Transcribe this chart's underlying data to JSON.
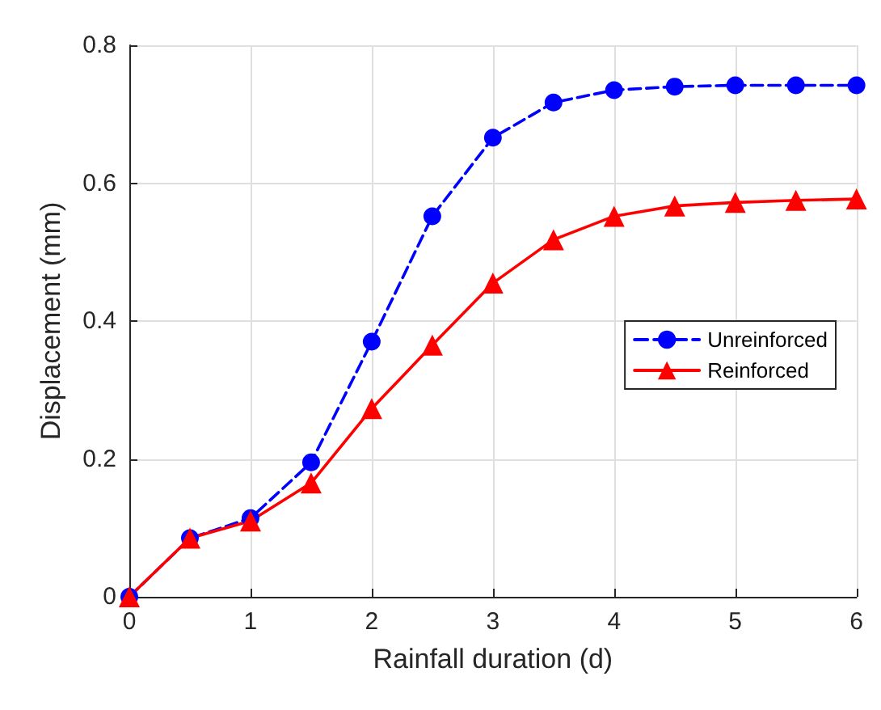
{
  "chart_data": {
    "type": "line",
    "xlabel": "Rainfall duration (d)",
    "ylabel": "Displacement (mm)",
    "x": [
      0,
      0.5,
      1,
      1.5,
      2,
      2.5,
      3,
      3.5,
      4,
      4.5,
      5,
      5.5,
      6
    ],
    "series": [
      {
        "name": "Unreinforced",
        "color": "#0000ff",
        "marker": "circle",
        "line_style": "dashed",
        "values": [
          0,
          0.085,
          0.114,
          0.195,
          0.37,
          0.552,
          0.666,
          0.717,
          0.735,
          0.74,
          0.742,
          0.742,
          0.742
        ]
      },
      {
        "name": "Reinforced",
        "color": "#ff0000",
        "marker": "triangle",
        "line_style": "solid",
        "values": [
          0,
          0.085,
          0.11,
          0.165,
          0.273,
          0.365,
          0.455,
          0.518,
          0.552,
          0.567,
          0.572,
          0.575,
          0.577
        ]
      }
    ],
    "xlim": [
      0,
      6
    ],
    "xticks": [
      0,
      1,
      2,
      3,
      4,
      5,
      6
    ],
    "ylim": [
      0,
      0.8
    ],
    "yticks": [
      0,
      0.2,
      0.4,
      0.6,
      0.8
    ],
    "grid": true,
    "legend": "right"
  }
}
